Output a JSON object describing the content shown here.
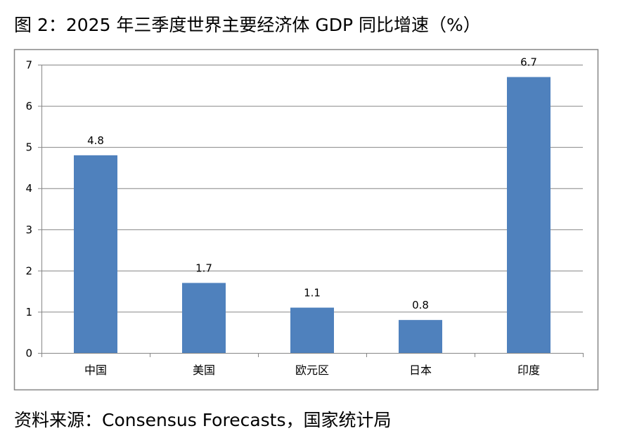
{
  "title": "图 2：2025 年三季度世界主要经济体 GDP 同比增速（%）",
  "source": "资料来源：Consensus Forecasts，国家统计局",
  "chart_data": {
    "type": "bar",
    "title": "",
    "xlabel": "",
    "ylabel": "",
    "categories": [
      "中国",
      "美国",
      "欧元区",
      "日本",
      "印度"
    ],
    "values": [
      4.8,
      1.7,
      1.1,
      0.8,
      6.7
    ],
    "data_labels": [
      "4.8",
      "1.7",
      "1.1",
      "0.8",
      "6.7"
    ],
    "ylim": [
      0,
      7
    ],
    "yticks": [
      "0",
      "1",
      "2",
      "3",
      "4",
      "5",
      "6",
      "7"
    ],
    "grid": true,
    "legend": "none",
    "bar_color": "#4F81BD"
  }
}
